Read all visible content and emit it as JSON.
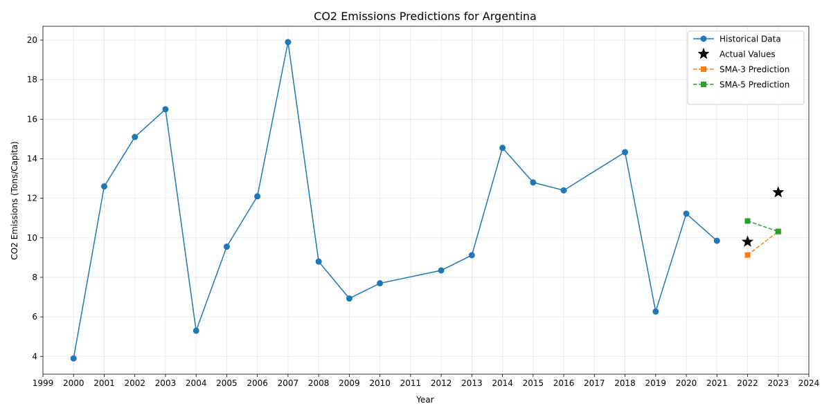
{
  "chart_data": {
    "type": "line",
    "title": "CO2 Emissions Predictions for Argentina",
    "xlabel": "Year",
    "ylabel": "CO2 Emissions (Tons/Capita)",
    "xlim": [
      1999,
      2024
    ],
    "ylim": [
      3.1,
      20.7
    ],
    "xticks": [
      1999,
      2000,
      2001,
      2002,
      2003,
      2004,
      2005,
      2006,
      2007,
      2008,
      2009,
      2010,
      2011,
      2012,
      2013,
      2014,
      2015,
      2016,
      2017,
      2018,
      2019,
      2020,
      2021,
      2022,
      2023,
      2024
    ],
    "yticks": [
      4,
      6,
      8,
      10,
      12,
      14,
      16,
      18,
      20
    ],
    "grid": true,
    "legend_position": "top-right",
    "series": [
      {
        "name": "Historical Data",
        "style": "line-circle",
        "color": "#1f77b4",
        "x": [
          2000,
          2001,
          2002,
          2003,
          2004,
          2005,
          2006,
          2007,
          2008,
          2009,
          2010,
          2012,
          2013,
          2014,
          2015,
          2016,
          2018,
          2019,
          2020,
          2021
        ],
        "y": [
          3.9,
          12.6,
          15.1,
          16.5,
          5.3,
          9.55,
          12.1,
          19.9,
          8.8,
          6.93,
          7.7,
          8.35,
          9.12,
          14.55,
          12.8,
          12.4,
          14.33,
          6.27,
          11.22,
          9.85
        ]
      },
      {
        "name": "Actual Values",
        "style": "star",
        "color": "#000000",
        "x": [
          2022,
          2023
        ],
        "y": [
          9.8,
          12.3
        ]
      },
      {
        "name": "SMA-3 Prediction",
        "style": "dashed-square",
        "color": "#ff7f0e",
        "x": [
          2022,
          2023
        ],
        "y": [
          9.13,
          10.32
        ]
      },
      {
        "name": "SMA-5 Prediction",
        "style": "dashed-square",
        "color": "#2ca02c",
        "x": [
          2022,
          2023
        ],
        "y": [
          10.85,
          10.32
        ]
      }
    ]
  }
}
